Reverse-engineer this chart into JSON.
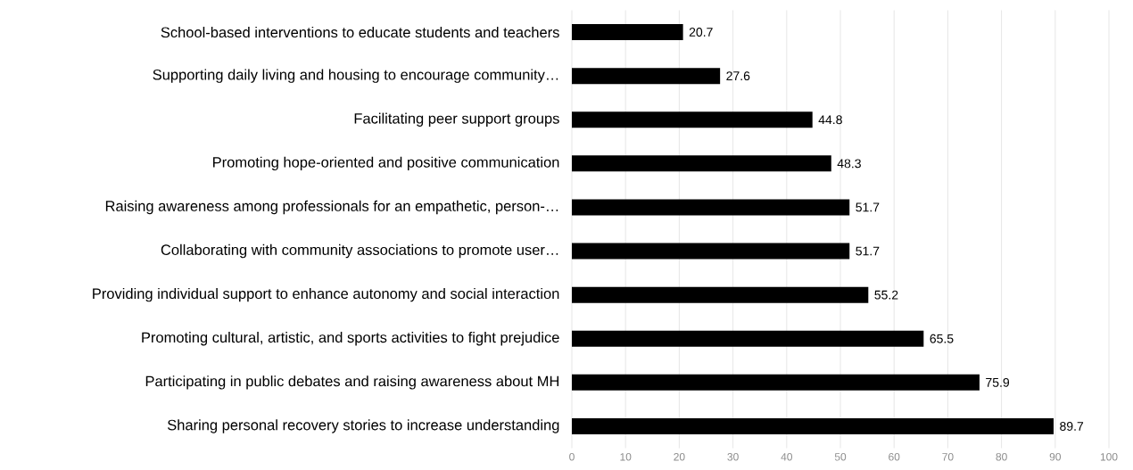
{
  "chart_data": {
    "type": "bar",
    "orientation": "horizontal",
    "categories": [
      "School-based interventions to educate students and teachers",
      "Supporting daily living and housing to encourage community…",
      "Facilitating peer support groups",
      "Promoting hope-oriented and positive communication",
      "Raising awareness among professionals for an empathetic, person-…",
      "Collaborating with community associations to promote user…",
      "Providing individual support to enhance autonomy and social interaction",
      "Promoting cultural, artistic, and sports activities to fight prejudice",
      "Participating in public debates and raising awareness about MH",
      "Sharing personal recovery stories to increase understanding"
    ],
    "values": [
      20.7,
      27.6,
      44.8,
      48.3,
      51.7,
      51.7,
      55.2,
      65.5,
      75.9,
      89.7
    ],
    "color": "#000000",
    "data_labels": true,
    "grid": "x",
    "xlim": [
      0,
      100
    ],
    "xticks": [
      0,
      10,
      20,
      30,
      40,
      50,
      60,
      70,
      80,
      90,
      100
    ]
  }
}
